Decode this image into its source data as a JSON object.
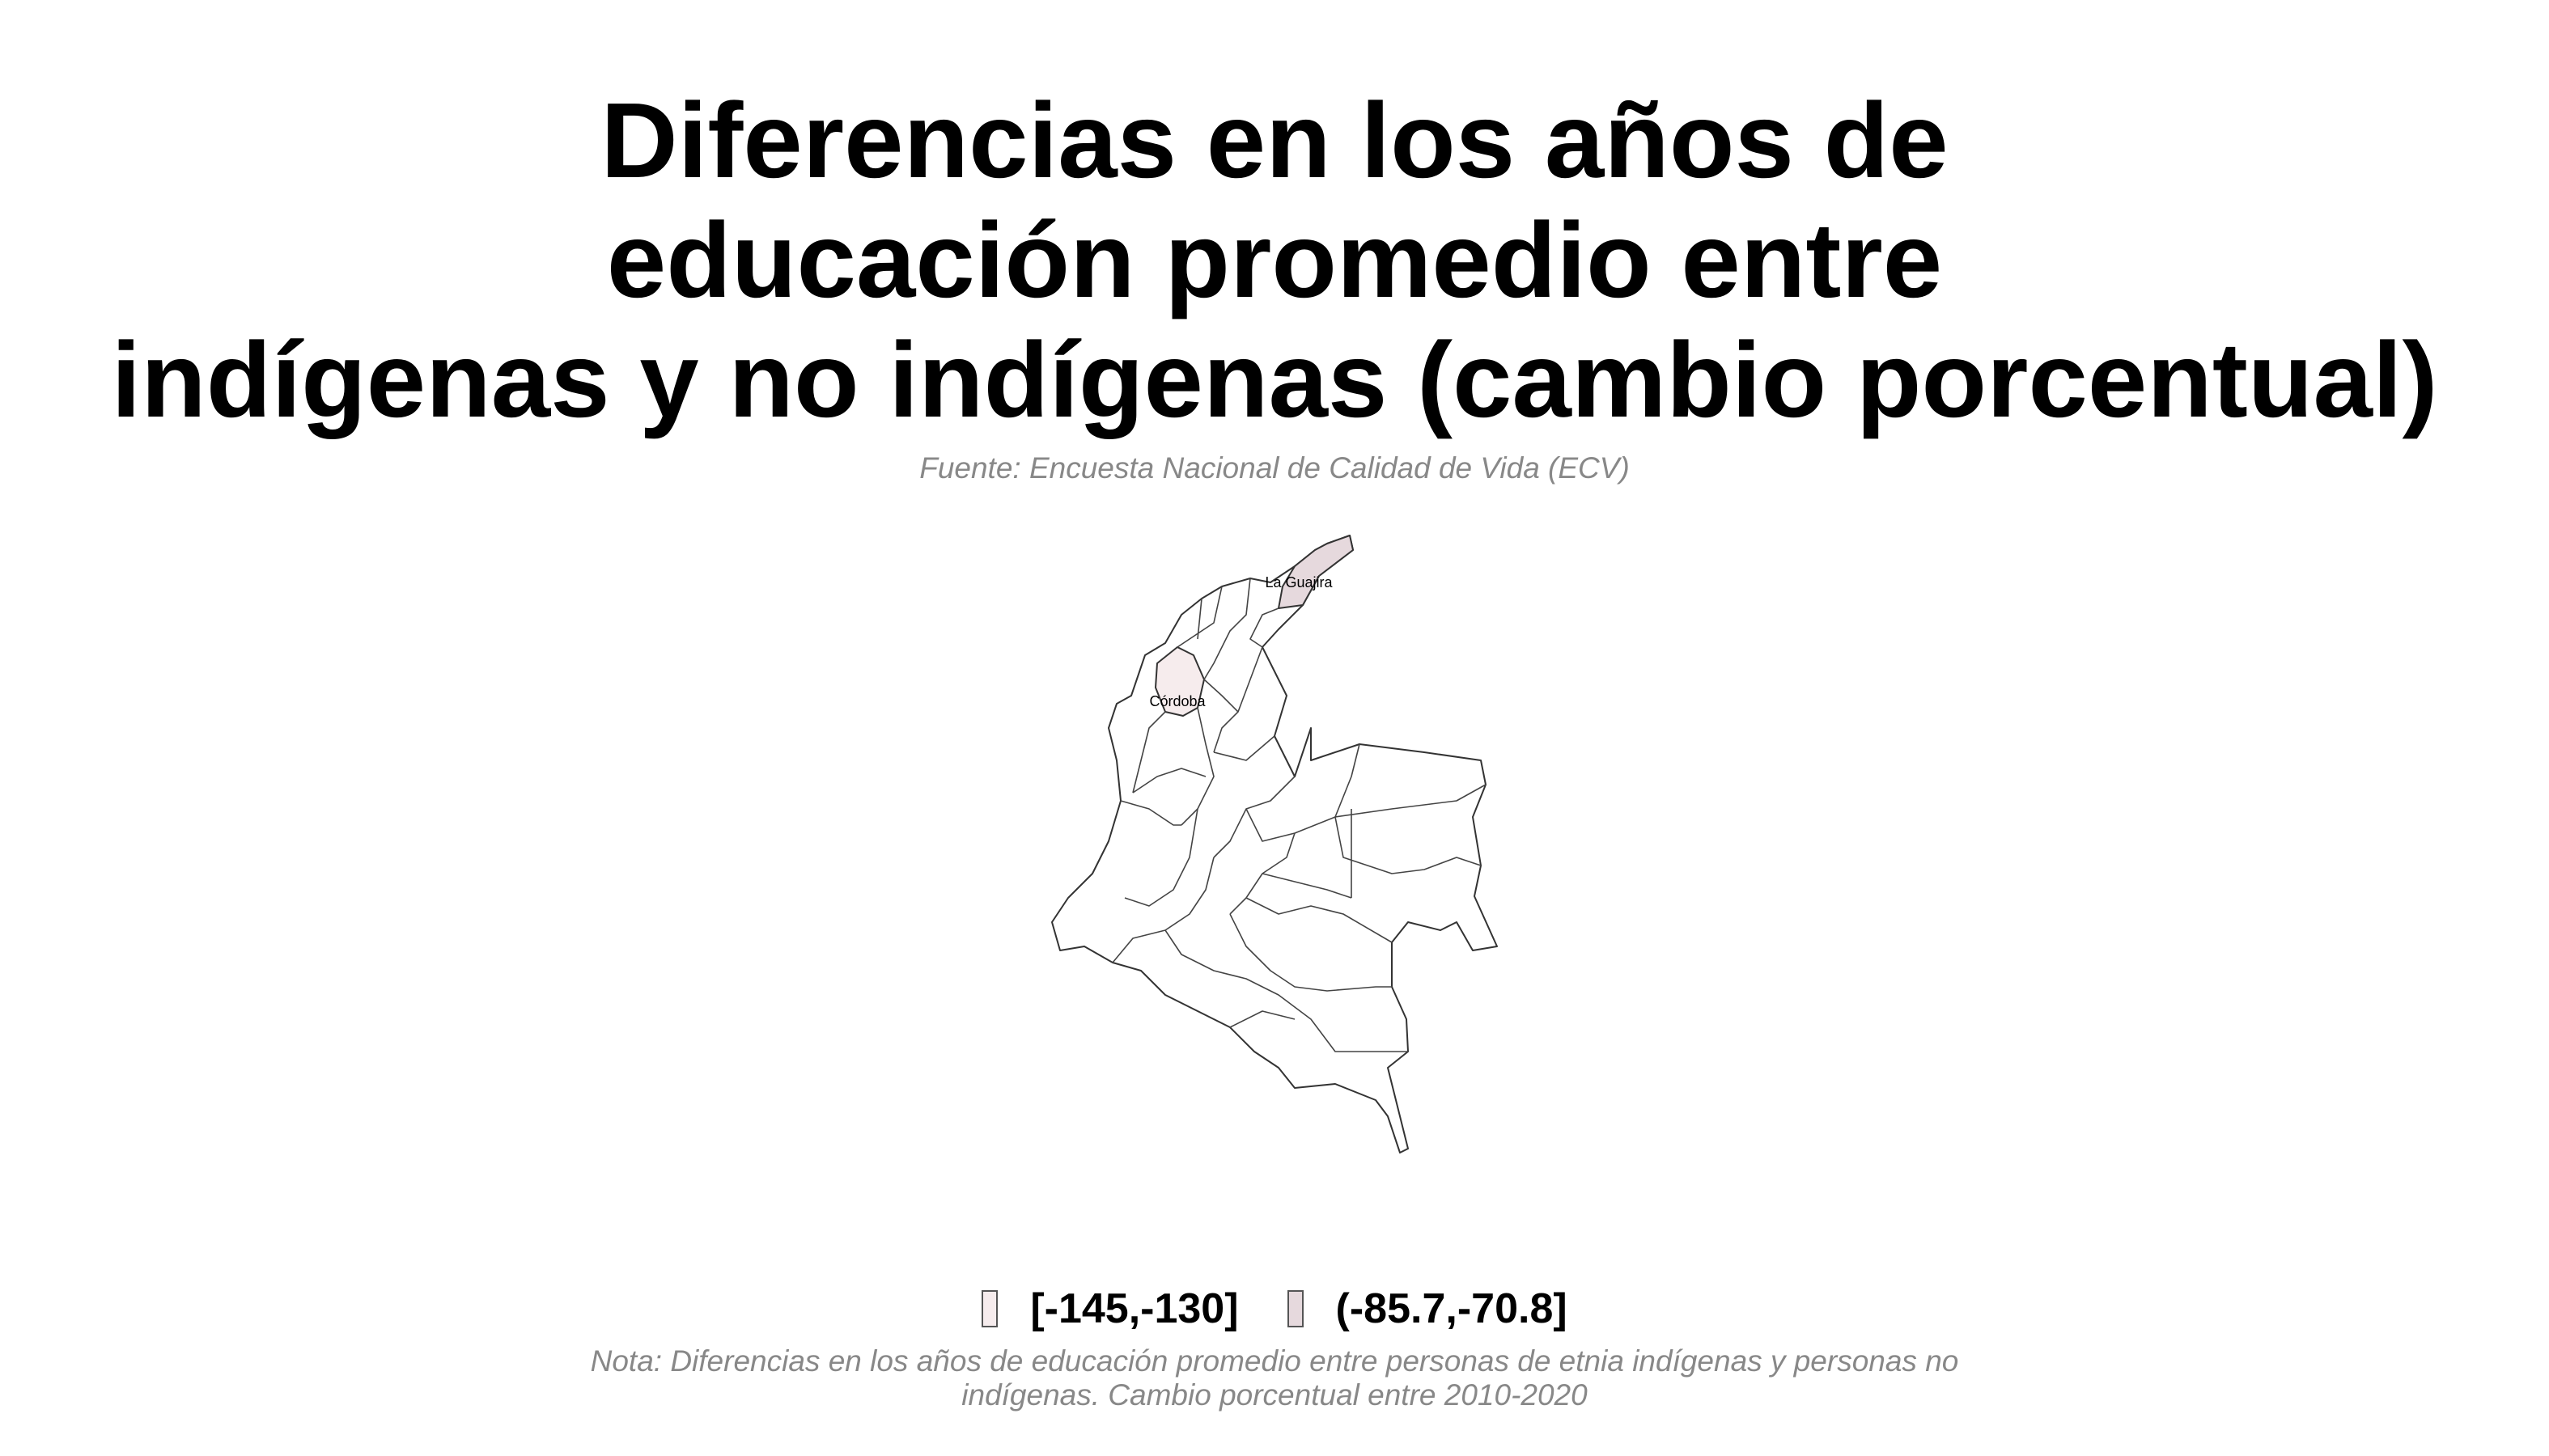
{
  "title_lines": [
    "Diferencias en los años de",
    "educación promedio entre",
    "indígenas y no indígenas (cambio porcentual)"
  ],
  "source": "Fuente: Encuesta Nacional de Calidad de Vida (ECV)",
  "map": {
    "region": "Colombia",
    "highlighted": [
      {
        "name": "La Guajira",
        "bin": "(-85.7,-70.8]",
        "color": "#e6d9dd"
      },
      {
        "name": "Córdoba",
        "bin": "[-145,-130]",
        "color": "#f6eced"
      }
    ],
    "labels": {
      "guajira": "La Guajira",
      "cordoba": "Córdoba"
    }
  },
  "legend": {
    "items": [
      {
        "label": "[-145,-130]",
        "color": "#f6eced"
      },
      {
        "label": "(-85.7,-70.8]",
        "color": "#e6d9dd"
      }
    ]
  },
  "note_lines": [
    "Nota: Diferencias en los años de educación promedio entre personas de etnia indígenas y personas no",
    "indígenas. Cambio porcentual entre 2010-2020"
  ]
}
